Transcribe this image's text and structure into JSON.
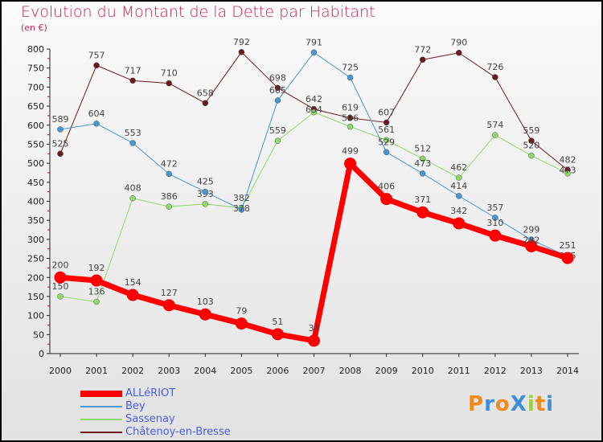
{
  "title": "Evolution du Montant de la Dette par Habitant",
  "unit": "(en €)",
  "logo": "ProXiti",
  "chart_data": {
    "type": "line",
    "title": "Evolution du Montant de la Dette par Habitant",
    "ylabel": "(en €)",
    "xlabel": "",
    "ylim": [
      0,
      800
    ],
    "yticks": [
      0,
      50,
      100,
      150,
      200,
      250,
      300,
      350,
      400,
      450,
      500,
      550,
      600,
      650,
      700,
      750,
      800
    ],
    "grid": false,
    "legend": "bottom-left",
    "x": [
      "2000",
      "2001",
      "2002",
      "2003",
      "2004",
      "2005",
      "2006",
      "2007",
      "2008",
      "2009",
      "2010",
      "2011",
      "2012",
      "2013",
      "2014"
    ],
    "series": [
      {
        "name": "Châtenoy-en-Bresse",
        "color": "#6b1a1f",
        "width": 1,
        "values": [
          525,
          757,
          717,
          710,
          658,
          792,
          698,
          642,
          619,
          607,
          772,
          790,
          726,
          559,
          482
        ]
      },
      {
        "name": "Sassenay",
        "color": "#8fd96a",
        "width": 1,
        "values": [
          150,
          136,
          408,
          386,
          393,
          382,
          559,
          634,
          596,
          561,
          512,
          462,
          574,
          520,
          473
        ]
      },
      {
        "name": "Bey",
        "color": "#4a96d0",
        "width": 1,
        "values": [
          589,
          604,
          553,
          472,
          425,
          378,
          665,
          791,
          725,
          529,
          473,
          414,
          357,
          299,
          255
        ]
      },
      {
        "name": "ALLéRIOT",
        "color": "#ff0000",
        "width": 7,
        "values": [
          200,
          192,
          154,
          127,
          103,
          79,
          51,
          34,
          499,
          406,
          371,
          342,
          310,
          282,
          251
        ]
      }
    ]
  }
}
